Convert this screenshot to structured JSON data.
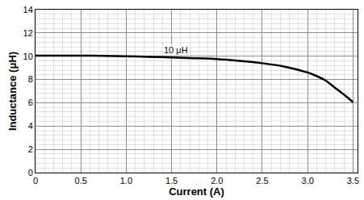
{
  "chart_data": {
    "type": "line",
    "x_label": "Current (A)",
    "y_label": "Inductance (μH)",
    "x": [
      0,
      0.25,
      0.5,
      0.75,
      1.0,
      1.25,
      1.5,
      1.75,
      2.0,
      2.25,
      2.5,
      2.75,
      3.0,
      3.1,
      3.2,
      3.3,
      3.4,
      3.5
    ],
    "values": [
      10.05,
      10.05,
      10.05,
      10.03,
      10.0,
      9.95,
      9.9,
      9.83,
      9.75,
      9.6,
      9.4,
      9.1,
      8.6,
      8.3,
      7.9,
      7.3,
      6.7,
      6.05
    ],
    "color": "#000000",
    "xlim": [
      0,
      3.55
    ],
    "xticks": [
      0,
      0.5,
      {
        "value": 1,
        "label": "1.0"
      },
      1.5,
      {
        "value": 2,
        "label": "2.0"
      },
      2.5,
      {
        "value": 3,
        "label": "3.0"
      },
      3.5
    ],
    "ylim": [
      0,
      14
    ],
    "yticks": [
      0,
      2,
      4,
      6,
      8,
      10,
      12,
      14
    ],
    "grid": true,
    "annotations": [
      {
        "text": "10 μH",
        "x": 1.55,
        "y": 10.55
      }
    ]
  }
}
